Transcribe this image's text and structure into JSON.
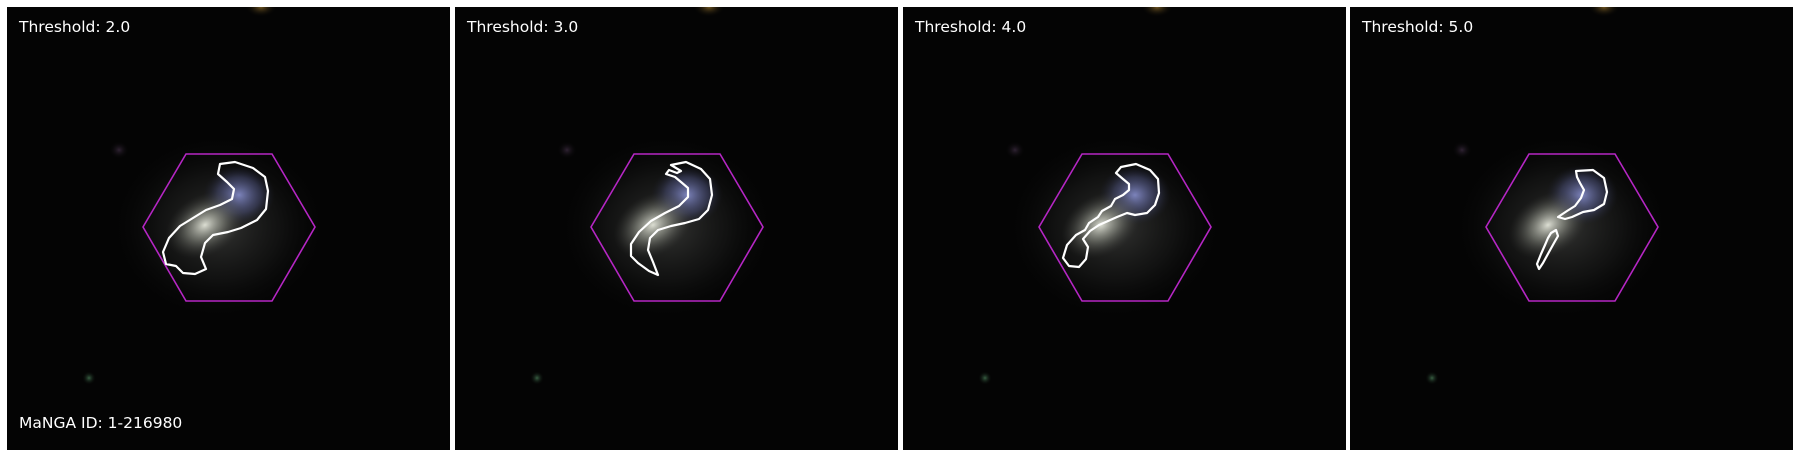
{
  "figure": {
    "object_id_label": "MaNGA ID: 1-216980",
    "panels": [
      {
        "title": "Threshold: 2.0"
      },
      {
        "title": "Threshold: 3.0"
      },
      {
        "title": "Threshold: 4.0"
      },
      {
        "title": "Threshold: 5.0"
      }
    ]
  },
  "colors": {
    "background": "#040404",
    "galaxy_core": "#d9dcd2",
    "galaxy_blue": "#7f88c4",
    "hexagon": "#b526c4",
    "contour": "#ffffff",
    "text": "#ffffff",
    "separator": "#ffffff"
  }
}
